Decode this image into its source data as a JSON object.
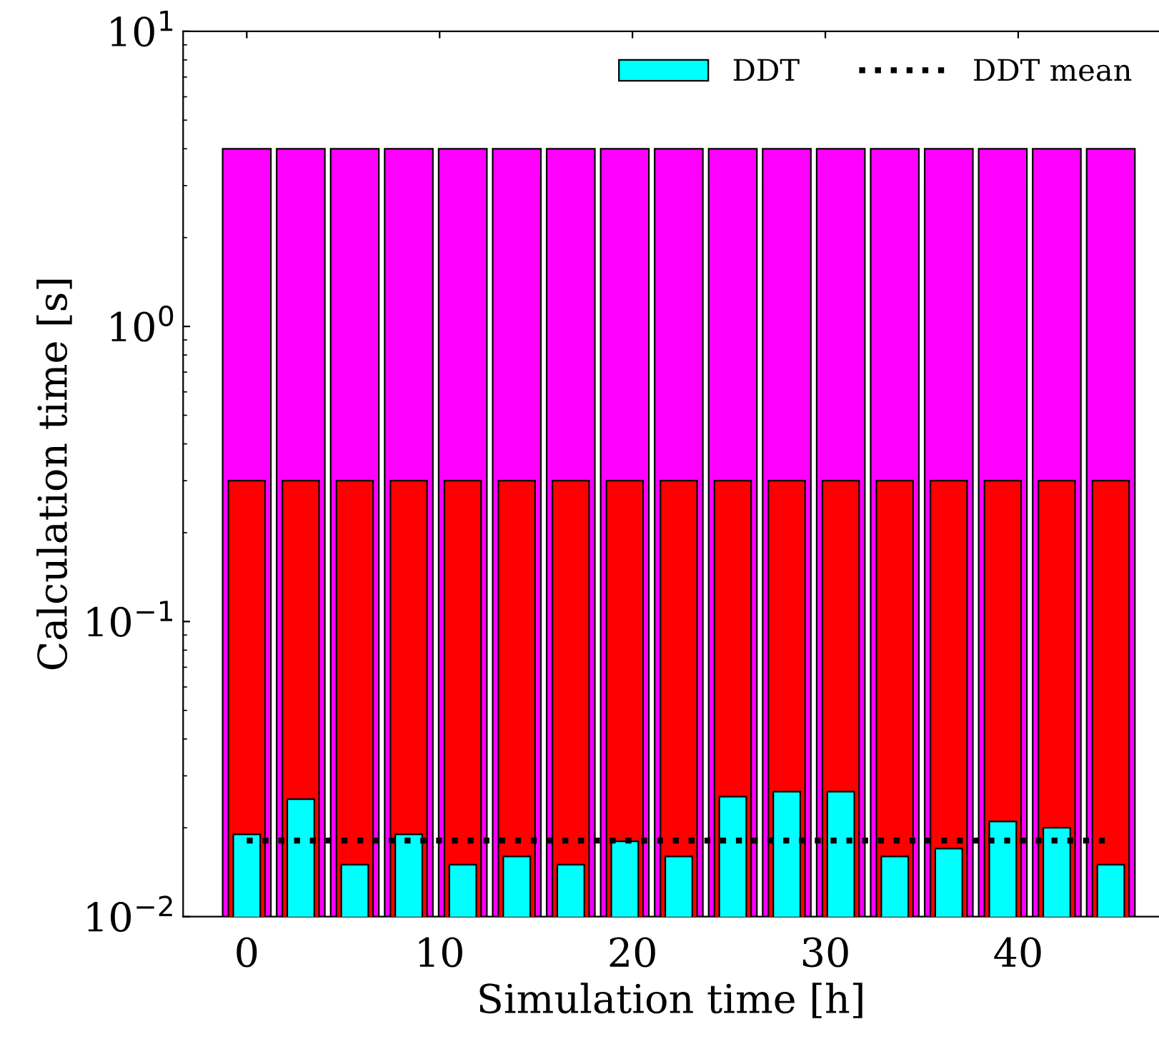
{
  "chart_data": {
    "type": "bar",
    "xlabel": "Simulation time [h]",
    "ylabel": "Calculation time [s]",
    "x": [
      0,
      2.8,
      5.6,
      8.4,
      11.2,
      14,
      16.8,
      19.6,
      22.4,
      25.2,
      28,
      30.8,
      33.6,
      36.4,
      39.2,
      42,
      44.8
    ],
    "series": [
      {
        "color": "#ff00ff",
        "values": [
          4,
          4,
          4,
          4,
          4,
          4,
          4,
          4,
          4,
          4,
          4,
          4,
          4,
          4,
          4,
          4,
          4
        ]
      },
      {
        "color": "#ff0000",
        "values": [
          0.3,
          0.3,
          0.3,
          0.3,
          0.3,
          0.3,
          0.3,
          0.3,
          0.3,
          0.3,
          0.3,
          0.3,
          0.3,
          0.3,
          0.3,
          0.3,
          0.3
        ]
      },
      {
        "name": "DDT",
        "color": "#00ffff",
        "values": [
          0.019,
          0.025,
          0.015,
          0.019,
          0.015,
          0.016,
          0.015,
          0.018,
          0.016,
          0.0255,
          0.0265,
          0.0265,
          0.016,
          0.017,
          0.021,
          0.02,
          0.015
        ]
      },
      {
        "name": "DDT mean",
        "type": "line",
        "color": "#000000",
        "line_style": "dotted",
        "x": [
          0,
          44.8
        ],
        "values": [
          0.0181,
          0.0181
        ]
      }
    ],
    "log": "y",
    "xlim": [
      -3.3,
      47.3
    ],
    "xticks": [
      0,
      10,
      20,
      30,
      40
    ],
    "ylim": [
      0.01,
      10
    ],
    "yticks": [
      {
        "value": 0.01,
        "label": "10$^{−2}$"
      },
      {
        "value": 0.1,
        "label": "10$^{−1}$"
      },
      {
        "value": 1,
        "label": "10$^{0}$"
      },
      {
        "value": 10,
        "label": "10$^{1}$"
      }
    ],
    "grid": false,
    "legend": "top right"
  }
}
